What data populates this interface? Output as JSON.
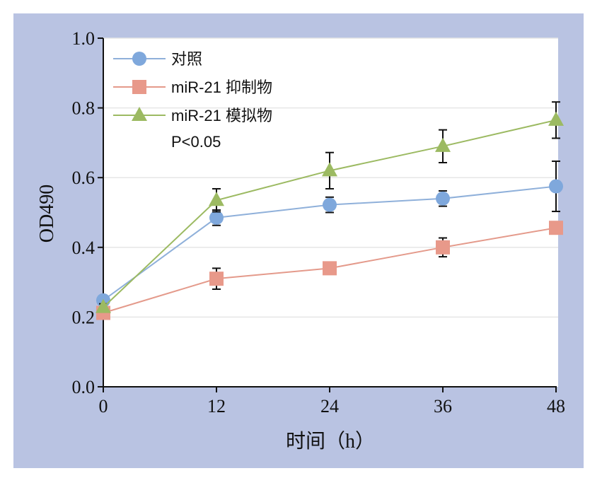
{
  "chart_data": {
    "type": "line",
    "xlabel": "时间（h）",
    "ylabel": "OD490",
    "x": [
      0,
      12,
      24,
      36,
      48
    ],
    "x_ticks": [
      "0",
      "12",
      "24",
      "36",
      "48"
    ],
    "xlim": [
      0,
      48
    ],
    "y_ticks": [
      "0.0",
      "0.2",
      "0.4",
      "0.6",
      "0.8",
      "1.0"
    ],
    "ylim": [
      0,
      1.0
    ],
    "grid": "horizontal",
    "legend": "top-left",
    "annotation": "P<0.05",
    "series": [
      {
        "name": "对照",
        "marker": "circle",
        "color": "#7fa8dc",
        "line_color": "#8fb0da",
        "values": [
          0.248,
          0.485,
          0.522,
          0.54,
          0.575
        ],
        "errors": [
          0.012,
          0.022,
          0.022,
          0.022,
          0.072
        ]
      },
      {
        "name": "miR-21 抑制物",
        "marker": "square",
        "color": "#e8998a",
        "line_color": "#e49a8b",
        "values": [
          0.212,
          0.31,
          0.34,
          0.4,
          0.456
        ],
        "errors": [
          0.012,
          0.03,
          0.01,
          0.027,
          0.01
        ]
      },
      {
        "name": "miR-21 模拟物",
        "marker": "triangle",
        "color": "#9cba62",
        "line_color": "#9cba62",
        "values": [
          0.228,
          0.535,
          0.62,
          0.69,
          0.765
        ],
        "errors": [
          0.01,
          0.033,
          0.052,
          0.047,
          0.052
        ]
      }
    ]
  }
}
